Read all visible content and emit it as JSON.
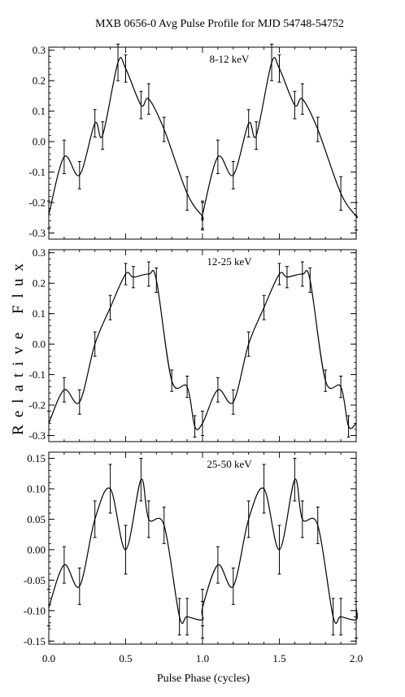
{
  "chart_data": {
    "type": "line",
    "title": "MXB 0656-0 Avg Pulse Profile for MJD 54748-54752",
    "xlabel": "Pulse Phase (cycles)",
    "ylabel": "Relative Flux",
    "xlim": [
      0.0,
      2.0
    ],
    "x_tick_labels": [
      "0.0",
      "0.5",
      "1.0",
      "1.5",
      "2.0"
    ],
    "error_bars": true,
    "grid": false,
    "panels": [
      {
        "label": "8-12 keV",
        "ylim": [
          -0.32,
          0.31
        ],
        "y_tick_labels": [
          "0.3",
          "0.2",
          "0.1",
          "0.0",
          "-0.1",
          "-0.2",
          "-0.3"
        ],
        "x": [
          0.0,
          0.1,
          0.2,
          0.3,
          0.35,
          0.45,
          0.5,
          0.6,
          0.65,
          0.75,
          0.9,
          1.0
        ],
        "y": [
          -0.24,
          -0.05,
          -0.11,
          0.06,
          0.02,
          0.26,
          0.24,
          0.12,
          0.14,
          0.04,
          -0.17,
          -0.245
        ],
        "err": [
          0.045,
          0.055,
          0.045,
          0.045,
          0.045,
          0.06,
          0.045,
          0.045,
          0.05,
          0.04,
          0.055,
          0.045
        ]
      },
      {
        "label": "12-25 keV",
        "ylim": [
          -0.32,
          0.31
        ],
        "y_tick_labels": [
          "0.3",
          "0.2",
          "0.1",
          "0.0",
          "-0.1",
          "-0.2",
          "-0.3"
        ],
        "x": [
          0.0,
          0.1,
          0.2,
          0.3,
          0.4,
          0.5,
          0.55,
          0.65,
          0.7,
          0.8,
          0.9,
          0.95
        ],
        "y": [
          -0.26,
          -0.15,
          -0.19,
          0.0,
          0.12,
          0.23,
          0.22,
          0.23,
          0.21,
          -0.12,
          -0.14,
          -0.27
        ],
        "err": [
          0.04,
          0.04,
          0.04,
          0.04,
          0.04,
          0.035,
          0.035,
          0.04,
          0.04,
          0.035,
          0.035,
          0.035
        ]
      },
      {
        "label": "25-50 keV",
        "ylim": [
          -0.155,
          0.16
        ],
        "y_tick_labels": [
          "0.15",
          "0.10",
          "0.05",
          "0.00",
          "-0.05",
          "-0.10",
          "-0.15"
        ],
        "x": [
          0.0,
          0.1,
          0.2,
          0.3,
          0.4,
          0.5,
          0.6,
          0.65,
          0.75,
          0.85,
          0.9,
          1.0
        ],
        "y": [
          -0.095,
          -0.025,
          -0.06,
          0.05,
          0.1,
          0.0,
          0.115,
          0.05,
          0.04,
          -0.11,
          -0.11,
          -0.115
        ],
        "err": [
          0.03,
          0.03,
          0.03,
          0.03,
          0.04,
          0.04,
          0.035,
          0.03,
          0.03,
          0.03,
          0.03,
          0.03
        ]
      }
    ]
  }
}
